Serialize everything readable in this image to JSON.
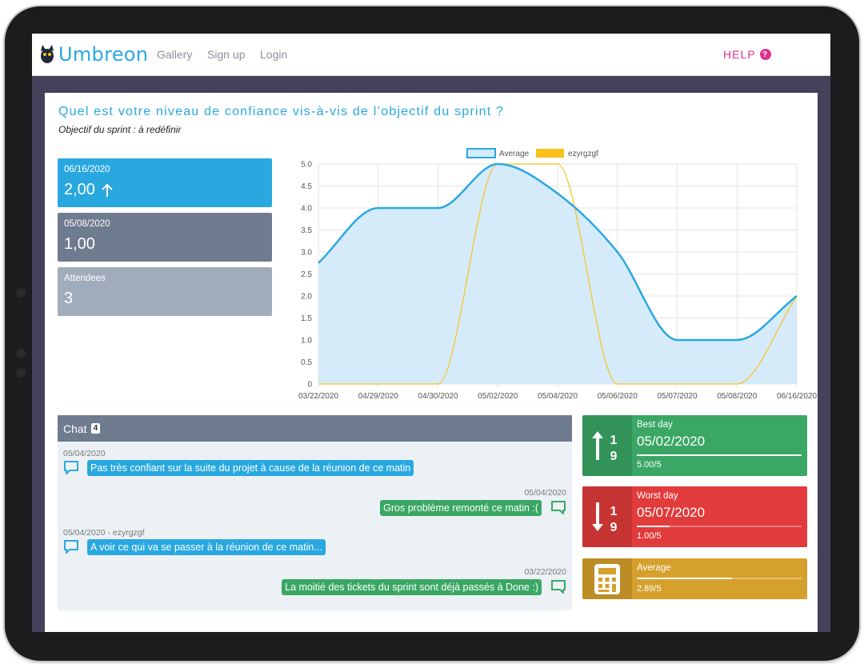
{
  "nav": {
    "brand": "Umbreon",
    "links": [
      "Gallery",
      "Sign up",
      "Login"
    ],
    "help": "HELP",
    "help_icon": "?"
  },
  "page": {
    "title": "Quel est votre niveau de confiance vis-à-vis de l’objectif du sprint ?",
    "subtitle": "Objectif du sprint : à redéfinir"
  },
  "stats": [
    {
      "label": "06/16/2020",
      "value": "2,00"
    },
    {
      "label": "05/08/2020",
      "value": "1,00"
    },
    {
      "label": "Attendees",
      "value": "3"
    }
  ],
  "chart_data": {
    "type": "line",
    "categories": [
      "03/22/2020",
      "04/29/2020",
      "04/30/2020",
      "05/02/2020",
      "05/04/2020",
      "05/06/2020",
      "05/07/2020",
      "05/08/2020",
      "06/16/2020"
    ],
    "series": [
      {
        "name": "Average",
        "values": [
          2.75,
          4.0,
          4.0,
          5.0,
          4.33,
          3.0,
          1.0,
          1.0,
          2.0
        ],
        "color": "#29a8e0",
        "fill": "#d6ebfa"
      },
      {
        "name": "ezyrgzgf",
        "values": [
          0,
          0,
          0,
          5,
          5,
          0,
          0,
          0,
          2
        ],
        "color": "#f8c21a"
      }
    ],
    "ylim": [
      0,
      5
    ],
    "yticks": [
      "0",
      "0.5",
      "1.0",
      "1.5",
      "2.0",
      "2.5",
      "3.0",
      "3.5",
      "4.0",
      "4.5",
      "5.0"
    ],
    "grid": true,
    "legend": "top"
  },
  "chat": {
    "title": "Chat",
    "count": "4",
    "messages": [
      {
        "meta": "05/04/2020",
        "text": "Pas très confiant sur la suite du projet à cause de la réunion de ce matin",
        "side": "left"
      },
      {
        "meta": "05/04/2020",
        "text": "Gros problème remonté ce matin :(",
        "side": "right"
      },
      {
        "meta": "05/04/2020  -  ezyrgzgf",
        "text": "A voir ce qui va se passer à la réunion de ce matin...",
        "side": "left"
      },
      {
        "meta": "03/22/2020",
        "text": "La moitié des tickets du sprint sont déjà passés à Done :)",
        "side": "right"
      }
    ]
  },
  "summary": {
    "best": {
      "label": "Best day",
      "date": "05/02/2020",
      "score": "5.00/5",
      "progress": 1.0
    },
    "worst": {
      "label": "Worst day",
      "date": "05/07/2020",
      "score": "1.00/5",
      "progress": 0.2
    },
    "average": {
      "label": "Average",
      "score": "2.89/5",
      "progress": 0.578
    },
    "icon_digits": {
      "top": "1",
      "bottom": "9"
    }
  },
  "colors": {
    "brand": "#29a8e0",
    "help": "#e0318c",
    "green": "#3aa764",
    "red": "#e23b3b",
    "gold": "#d6a02c",
    "slate": "#6f7b8f"
  }
}
